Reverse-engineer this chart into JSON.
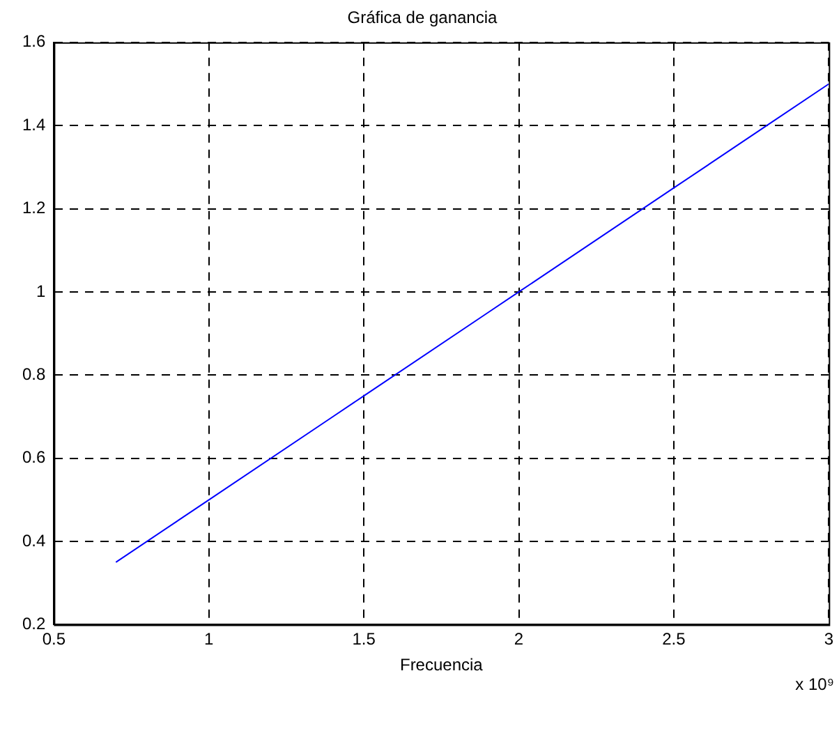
{
  "chart_data": {
    "type": "line",
    "title": "Gráfica de ganancia",
    "xlabel": "Frecuencia",
    "annotations": [
      "x 10⁹"
    ],
    "x": [
      0.7,
      1,
      1.4,
      1.5,
      1.9,
      2,
      2.5,
      2.8,
      3
    ],
    "series": [
      {
        "color": "#0000ff",
        "values": [
          0.35,
          0.5,
          0.7,
          0.75,
          0.95,
          1,
          1.25,
          1.4,
          1.5
        ]
      }
    ],
    "xlim": [
      0.5,
      3
    ],
    "xticks": [
      0.5,
      1,
      1.5,
      2,
      2.5,
      3
    ],
    "ylim": [
      0.2,
      1.6
    ],
    "yticks": [
      0.2,
      0.4,
      0.6,
      0.8,
      1,
      1.2,
      1.4,
      1.6
    ],
    "grid": true,
    "legend": false,
    "marker": "none",
    "line_style": "solid"
  }
}
